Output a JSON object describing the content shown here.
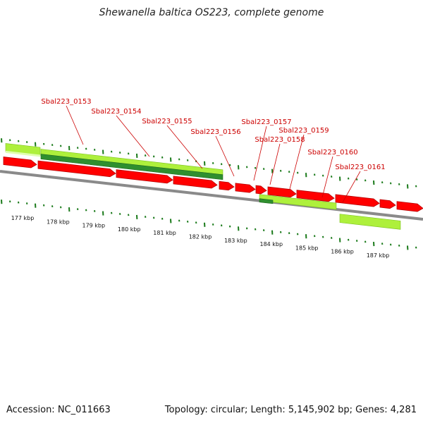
{
  "title": "Shewanella baltica OS223, complete genome",
  "footer": {
    "accession": "Accession: NC_011663",
    "summary": "Topology: circular; Length: 5,145,902 bp; Genes: 4,281"
  },
  "colors": {
    "cds": "#ff0000",
    "cds_shade": "#b80000",
    "cog_light": "#aef03c",
    "cog_dark": "#2f8f2f",
    "backbone": "#8a8a8a",
    "tick": "#1a7a1a",
    "label": "#cc0000"
  },
  "genes": [
    {
      "name": "Sbal223_0153"
    },
    {
      "name": "Sbal223_0154"
    },
    {
      "name": "Sbal223_0155"
    },
    {
      "name": "Sbal223_0156"
    },
    {
      "name": "Sbal223_0157"
    },
    {
      "name": "Sbal223_0158"
    },
    {
      "name": "Sbal223_0159"
    },
    {
      "name": "Sbal223_0160"
    },
    {
      "name": "Sbal223_0161"
    }
  ],
  "kbp_ticks": [
    "177 kbp",
    "178 kbp",
    "179 kbp",
    "180 kbp",
    "181 kbp",
    "182 kbp",
    "183 kbp",
    "184 kbp",
    "185 kbp",
    "186 kbp",
    "187 kbp"
  ]
}
